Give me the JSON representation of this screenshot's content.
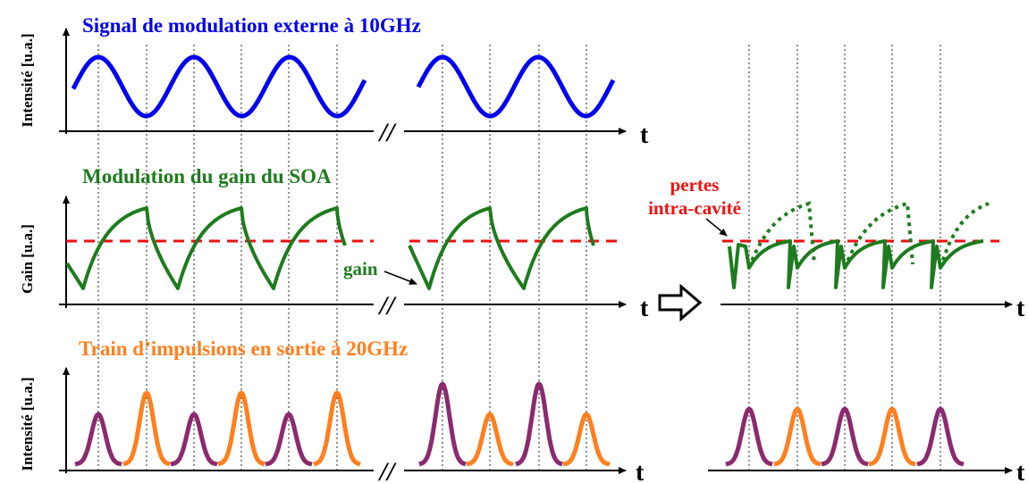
{
  "titles": {
    "external_signal": "Signal de modulation externe à 10GHz",
    "gain_modulation": "Modulation du gain du SOA",
    "pulse_train": "Train d’impulsions en sortie à 20GHz"
  },
  "ylabels": {
    "row1": "Intensité [u.a.]",
    "row2": "Gain [u.a.]",
    "row3": "Intensité [u.a.]"
  },
  "annotations": {
    "gain": "gain",
    "losses_line1": "pertes",
    "losses_line2": "intra-cavité"
  },
  "axis_label": "t",
  "colors": {
    "signal": "#0000ee",
    "gain": "#1e7b1e",
    "losses": "#ee1111",
    "pulse_large": "#ff7f1e",
    "pulse_small": "#8b2a6e",
    "text_orange": "#ff7f1e",
    "axis": "#000000",
    "guides": "#555555"
  },
  "icons": {
    "axis_break": "double-slash-icon",
    "transition": "hollow-right-arrow-icon"
  }
}
